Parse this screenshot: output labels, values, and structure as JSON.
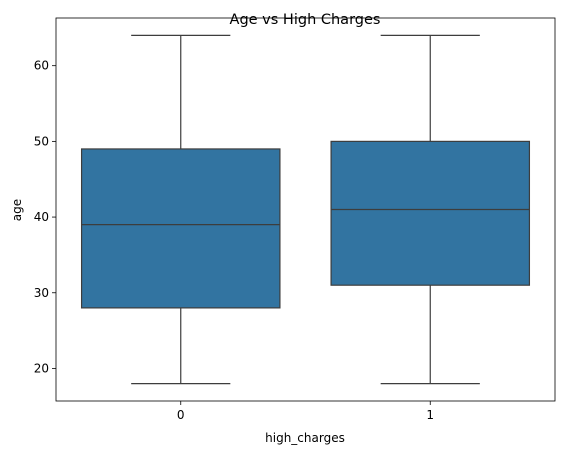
{
  "chart_data": {
    "type": "box",
    "title": "Age vs High Charges",
    "xlabel": "high_charges",
    "ylabel": "age",
    "categories": [
      "0",
      "1"
    ],
    "boxes": [
      {
        "category": "0",
        "min": 18,
        "q1": 28,
        "median": 39,
        "q3": 49,
        "max": 64
      },
      {
        "category": "1",
        "min": 18,
        "q1": 31,
        "median": 41,
        "q3": 50,
        "max": 64
      }
    ],
    "ylim": [
      15.7,
      66.3
    ],
    "yticks": [
      20,
      30,
      40,
      50,
      60
    ],
    "grid": false,
    "colors": {
      "box_fill": "#3274a1",
      "line": "#3d3d3d"
    }
  }
}
